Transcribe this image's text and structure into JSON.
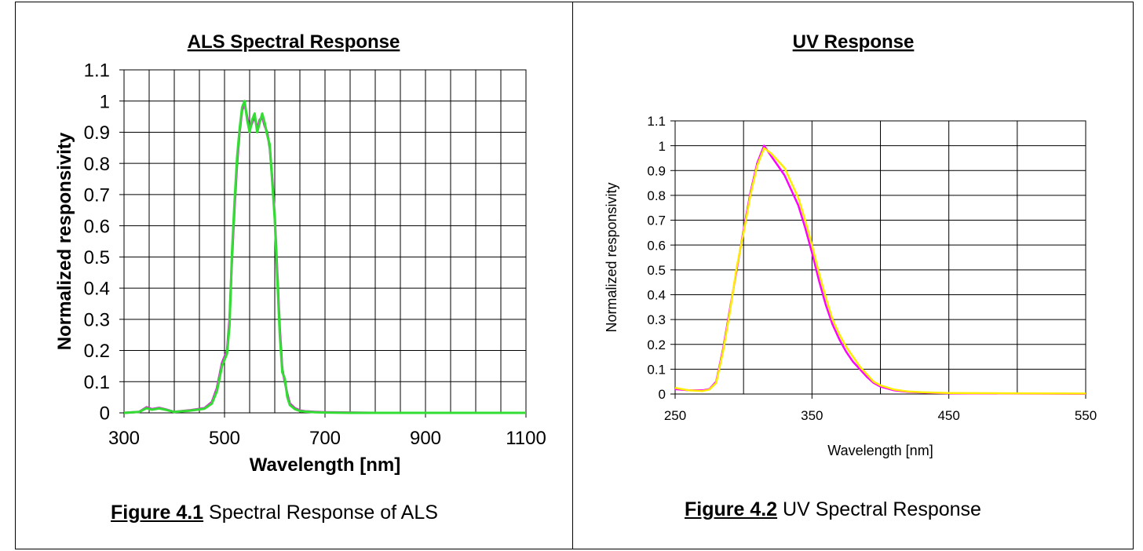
{
  "figures": [
    {
      "caption_number": "Figure 4.1",
      "caption_text": "Spectral Response of ALS"
    },
    {
      "caption_number": "Figure 4.2",
      "caption_text": "UV Spectral Response"
    }
  ],
  "chart_data": [
    {
      "type": "line",
      "title": "ALS Spectral Response",
      "xlabel": "Wavelength [nm]",
      "ylabel": "Normalized responsivity",
      "xlim": [
        300,
        1100
      ],
      "ylim": [
        0,
        1.1
      ],
      "x_ticks": [
        "300",
        "500",
        "700",
        "900",
        "1100"
      ],
      "y_ticks": [
        "0",
        "0.1",
        "0.2",
        "0.3",
        "0.4",
        "0.5",
        "0.6",
        "0.7",
        "0.8",
        "0.9",
        "1",
        "1.1"
      ],
      "grid": true,
      "legend": "none",
      "series": [
        {
          "color": "#cc33cc",
          "x": [
            300,
            330,
            345,
            355,
            370,
            385,
            400,
            430,
            460,
            475,
            485,
            495,
            505,
            510,
            515,
            520,
            525,
            530,
            535,
            540,
            545,
            550,
            555,
            560,
            565,
            570,
            575,
            580,
            585,
            590,
            595,
            600,
            605,
            610,
            615,
            620,
            625,
            630,
            640,
            650,
            660,
            680,
            700,
            750,
            800,
            900,
            1000,
            1100
          ],
          "y": [
            0,
            0.003,
            0.018,
            0.012,
            0.016,
            0.01,
            0.003,
            0.008,
            0.015,
            0.035,
            0.08,
            0.16,
            0.2,
            0.3,
            0.5,
            0.66,
            0.8,
            0.9,
            0.97,
            0.99,
            0.95,
            0.91,
            0.93,
            0.95,
            0.91,
            0.94,
            0.95,
            0.92,
            0.9,
            0.85,
            0.75,
            0.63,
            0.45,
            0.27,
            0.14,
            0.1,
            0.06,
            0.03,
            0.015,
            0.008,
            0.005,
            0.003,
            0.002,
            0.001,
            0,
            0,
            0,
            0
          ]
        },
        {
          "color": "#33dd33",
          "x": [
            300,
            330,
            345,
            355,
            370,
            385,
            400,
            430,
            460,
            475,
            485,
            495,
            505,
            510,
            515,
            520,
            525,
            530,
            535,
            540,
            545,
            550,
            555,
            560,
            565,
            570,
            575,
            580,
            585,
            590,
            595,
            600,
            605,
            610,
            615,
            620,
            625,
            630,
            640,
            650,
            660,
            680,
            700,
            750,
            800,
            900,
            1000,
            1100
          ],
          "y": [
            0,
            0.003,
            0.015,
            0.01,
            0.014,
            0.009,
            0.003,
            0.007,
            0.013,
            0.03,
            0.07,
            0.15,
            0.19,
            0.28,
            0.52,
            0.68,
            0.82,
            0.91,
            0.98,
            1.0,
            0.94,
            0.9,
            0.94,
            0.96,
            0.9,
            0.93,
            0.96,
            0.93,
            0.89,
            0.86,
            0.74,
            0.62,
            0.43,
            0.25,
            0.13,
            0.11,
            0.05,
            0.025,
            0.012,
            0.006,
            0.004,
            0.002,
            0.001,
            0,
            0,
            0,
            0,
            0
          ]
        }
      ]
    },
    {
      "type": "line",
      "title": "UV Response",
      "xlabel": "Wavelength [nm]",
      "ylabel": "Normalized responsivity",
      "xlim": [
        250,
        550
      ],
      "ylim": [
        0,
        1.1
      ],
      "x_ticks": [
        "250",
        "350",
        "450",
        "550"
      ],
      "y_ticks": [
        "0",
        "0.1",
        "0.2",
        "0.3",
        "0.4",
        "0.5",
        "0.6",
        "0.7",
        "0.8",
        "0.9",
        "1",
        "1.1"
      ],
      "grid": true,
      "legend": "none",
      "series": [
        {
          "color": "#ff00ff",
          "x": [
            250,
            260,
            270,
            275,
            280,
            285,
            290,
            295,
            300,
            305,
            310,
            315,
            320,
            325,
            330,
            335,
            340,
            345,
            350,
            355,
            360,
            365,
            370,
            375,
            380,
            385,
            390,
            395,
            400,
            410,
            420,
            430,
            450,
            500,
            550
          ],
          "y": [
            0.02,
            0.015,
            0.015,
            0.02,
            0.05,
            0.18,
            0.34,
            0.5,
            0.66,
            0.81,
            0.93,
            1.0,
            0.96,
            0.92,
            0.88,
            0.82,
            0.76,
            0.67,
            0.57,
            0.46,
            0.36,
            0.28,
            0.22,
            0.17,
            0.13,
            0.1,
            0.07,
            0.045,
            0.03,
            0.015,
            0.009,
            0.006,
            0.003,
            0.002,
            0.001
          ]
        },
        {
          "color": "#ffee00",
          "x": [
            250,
            260,
            270,
            275,
            280,
            285,
            290,
            295,
            300,
            305,
            310,
            315,
            320,
            325,
            330,
            335,
            340,
            345,
            350,
            355,
            360,
            365,
            370,
            375,
            380,
            385,
            390,
            395,
            400,
            410,
            420,
            430,
            450,
            500,
            550
          ],
          "y": [
            0.025,
            0.015,
            0.012,
            0.018,
            0.045,
            0.17,
            0.33,
            0.51,
            0.65,
            0.8,
            0.92,
            0.99,
            0.97,
            0.94,
            0.91,
            0.85,
            0.79,
            0.7,
            0.6,
            0.49,
            0.39,
            0.3,
            0.24,
            0.19,
            0.15,
            0.11,
            0.08,
            0.05,
            0.035,
            0.018,
            0.01,
            0.007,
            0.004,
            0.003,
            0.002
          ]
        }
      ]
    }
  ]
}
